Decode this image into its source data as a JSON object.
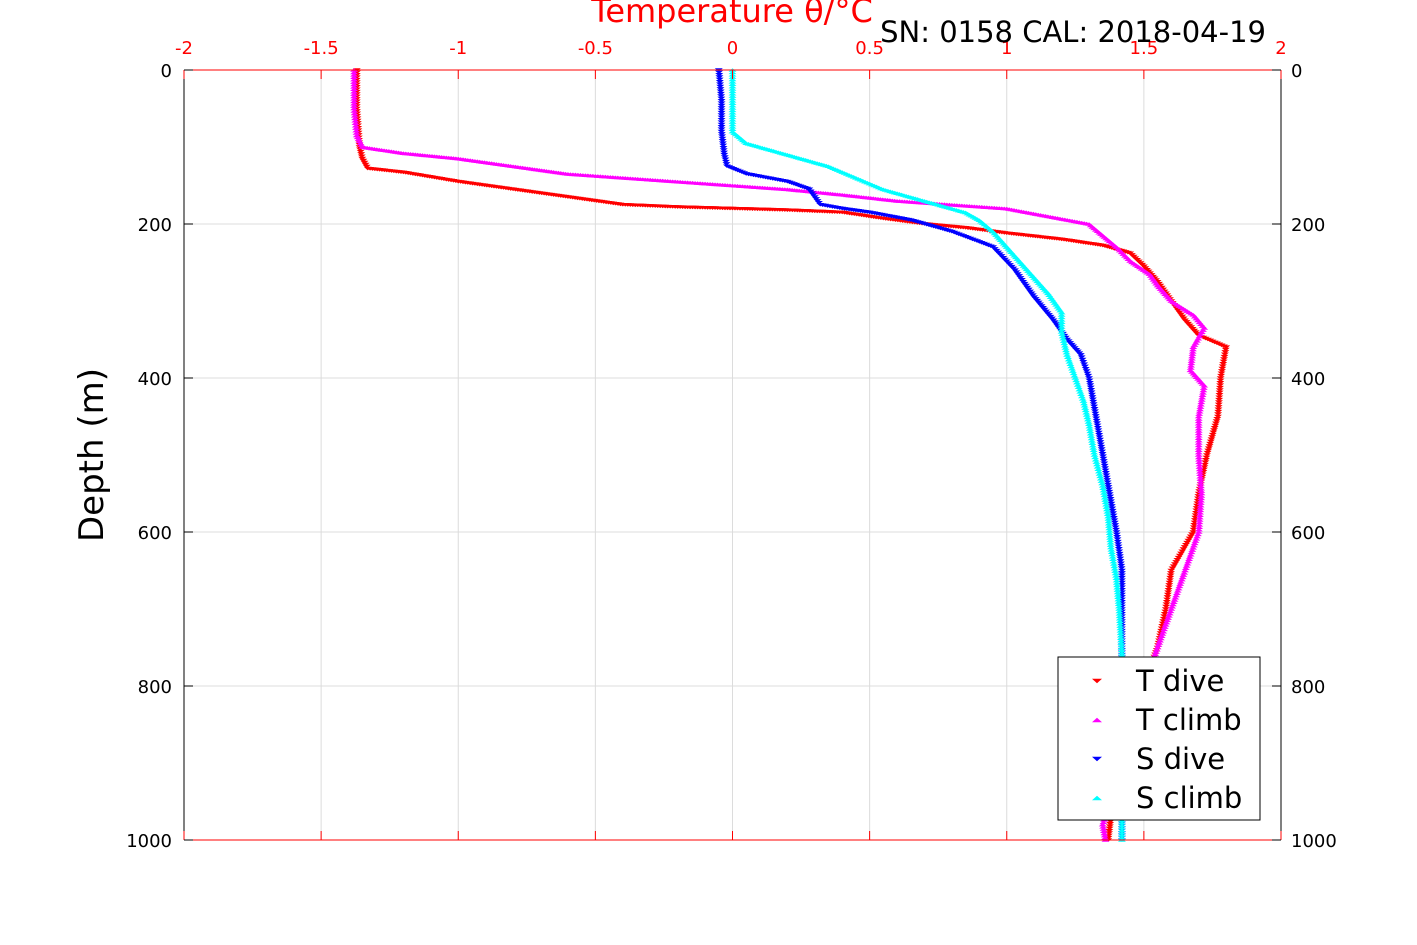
{
  "chart_data": {
    "type": "scatter",
    "title": "SN: 0158  CAL: 2018-04-19",
    "xlabel": "Temperature θ/°C",
    "ylabel": "Depth (m)",
    "xlim": [
      -2,
      2
    ],
    "ylim": [
      0,
      1000
    ],
    "y_reversed": true,
    "x_axis_position": "top",
    "x_ticks": [
      -2,
      -1.5,
      -1,
      -0.5,
      0,
      0.5,
      1,
      1.5,
      2
    ],
    "x_tick_labels": [
      "-2",
      "-1.5",
      "-1",
      "-0.5",
      "0",
      "0.5",
      "1",
      "1.5",
      "2"
    ],
    "y_ticks": [
      0,
      200,
      400,
      600,
      800,
      1000
    ],
    "y_tick_labels": [
      "0",
      "200",
      "400",
      "600",
      "800",
      "1000"
    ],
    "grid": true,
    "legend_position": "bottom-right",
    "series": [
      {
        "name": "T dive",
        "color": "#ff0000",
        "marker": "triangle-down",
        "points": [
          [
            -1.37,
            0
          ],
          [
            -1.37,
            50
          ],
          [
            -1.36,
            100
          ],
          [
            -1.35,
            115
          ],
          [
            -1.33,
            128
          ],
          [
            -1.2,
            133
          ],
          [
            -1.0,
            145
          ],
          [
            -0.8,
            155
          ],
          [
            -0.6,
            165
          ],
          [
            -0.4,
            175
          ],
          [
            -0.2,
            178
          ],
          [
            0.0,
            180
          ],
          [
            0.2,
            182
          ],
          [
            0.4,
            185
          ],
          [
            0.55,
            193
          ],
          [
            0.7,
            200
          ],
          [
            0.85,
            205
          ],
          [
            1.0,
            212
          ],
          [
            1.2,
            220
          ],
          [
            1.35,
            228
          ],
          [
            1.45,
            238
          ],
          [
            1.5,
            255
          ],
          [
            1.55,
            275
          ],
          [
            1.6,
            300
          ],
          [
            1.65,
            325
          ],
          [
            1.7,
            345
          ],
          [
            1.8,
            360
          ],
          [
            1.78,
            400
          ],
          [
            1.77,
            450
          ],
          [
            1.73,
            500
          ],
          [
            1.7,
            550
          ],
          [
            1.68,
            600
          ],
          [
            1.6,
            650
          ],
          [
            1.58,
            700
          ],
          [
            1.55,
            750
          ],
          [
            1.5,
            800
          ],
          [
            1.45,
            860
          ],
          [
            1.42,
            920
          ],
          [
            1.38,
            970
          ],
          [
            1.37,
            1000
          ]
        ]
      },
      {
        "name": "T climb",
        "color": "#ff00ff",
        "marker": "triangle-up",
        "points": [
          [
            -1.38,
            0
          ],
          [
            -1.38,
            50
          ],
          [
            -1.37,
            85
          ],
          [
            -1.35,
            100
          ],
          [
            -1.2,
            108
          ],
          [
            -1.0,
            115
          ],
          [
            -0.8,
            125
          ],
          [
            -0.6,
            135
          ],
          [
            -0.4,
            140
          ],
          [
            -0.2,
            145
          ],
          [
            0.0,
            150
          ],
          [
            0.2,
            155
          ],
          [
            0.4,
            162
          ],
          [
            0.6,
            170
          ],
          [
            0.8,
            175
          ],
          [
            1.0,
            180
          ],
          [
            1.15,
            190
          ],
          [
            1.3,
            200
          ],
          [
            1.35,
            215
          ],
          [
            1.4,
            230
          ],
          [
            1.45,
            248
          ],
          [
            1.52,
            265
          ],
          [
            1.55,
            280
          ],
          [
            1.6,
            300
          ],
          [
            1.68,
            318
          ],
          [
            1.72,
            335
          ],
          [
            1.68,
            360
          ],
          [
            1.67,
            390
          ],
          [
            1.72,
            410
          ],
          [
            1.7,
            450
          ],
          [
            1.7,
            500
          ],
          [
            1.71,
            550
          ],
          [
            1.7,
            600
          ],
          [
            1.65,
            650
          ],
          [
            1.6,
            700
          ],
          [
            1.55,
            750
          ],
          [
            1.5,
            800
          ],
          [
            1.45,
            860
          ],
          [
            1.4,
            920
          ],
          [
            1.35,
            980
          ],
          [
            1.36,
            1000
          ]
        ]
      },
      {
        "name": "S dive",
        "color": "#0000ff",
        "marker": "triangle-down",
        "points": [
          [
            -0.05,
            0
          ],
          [
            -0.04,
            40
          ],
          [
            -0.04,
            80
          ],
          [
            -0.03,
            110
          ],
          [
            -0.02,
            125
          ],
          [
            0.05,
            135
          ],
          [
            0.2,
            145
          ],
          [
            0.28,
            155
          ],
          [
            0.3,
            165
          ],
          [
            0.32,
            175
          ],
          [
            0.4,
            180
          ],
          [
            0.5,
            185
          ],
          [
            0.65,
            195
          ],
          [
            0.8,
            210
          ],
          [
            0.95,
            230
          ],
          [
            1.03,
            260
          ],
          [
            1.1,
            295
          ],
          [
            1.17,
            325
          ],
          [
            1.22,
            350
          ],
          [
            1.27,
            370
          ],
          [
            1.3,
            400
          ],
          [
            1.32,
            440
          ],
          [
            1.34,
            480
          ],
          [
            1.36,
            520
          ],
          [
            1.38,
            560
          ],
          [
            1.4,
            600
          ],
          [
            1.42,
            650
          ],
          [
            1.42,
            700
          ],
          [
            1.42,
            750
          ],
          [
            1.42,
            800
          ],
          [
            1.42,
            850
          ],
          [
            1.42,
            900
          ],
          [
            1.42,
            950
          ],
          [
            1.42,
            1000
          ]
        ]
      },
      {
        "name": "S climb",
        "color": "#00ffff",
        "marker": "triangle-up",
        "points": [
          [
            0.0,
            0
          ],
          [
            0.0,
            40
          ],
          [
            0.0,
            80
          ],
          [
            0.05,
            95
          ],
          [
            0.15,
            105
          ],
          [
            0.25,
            115
          ],
          [
            0.35,
            125
          ],
          [
            0.45,
            140
          ],
          [
            0.55,
            155
          ],
          [
            0.65,
            165
          ],
          [
            0.75,
            175
          ],
          [
            0.85,
            185
          ],
          [
            0.9,
            195
          ],
          [
            0.95,
            210
          ],
          [
            1.0,
            230
          ],
          [
            1.05,
            250
          ],
          [
            1.1,
            270
          ],
          [
            1.15,
            290
          ],
          [
            1.2,
            315
          ],
          [
            1.2,
            340
          ],
          [
            1.22,
            370
          ],
          [
            1.25,
            400
          ],
          [
            1.28,
            430
          ],
          [
            1.3,
            460
          ],
          [
            1.32,
            500
          ],
          [
            1.35,
            540
          ],
          [
            1.37,
            580
          ],
          [
            1.38,
            620
          ],
          [
            1.4,
            660
          ],
          [
            1.41,
            700
          ],
          [
            1.42,
            760
          ],
          [
            1.42,
            820
          ],
          [
            1.42,
            880
          ],
          [
            1.42,
            940
          ],
          [
            1.42,
            1000
          ]
        ]
      }
    ]
  },
  "legend": {
    "items": [
      "T dive",
      "T climb",
      "S dive",
      "S climb"
    ],
    "colors": [
      "#ff0000",
      "#ff00ff",
      "#0000ff",
      "#00ffff"
    ]
  }
}
